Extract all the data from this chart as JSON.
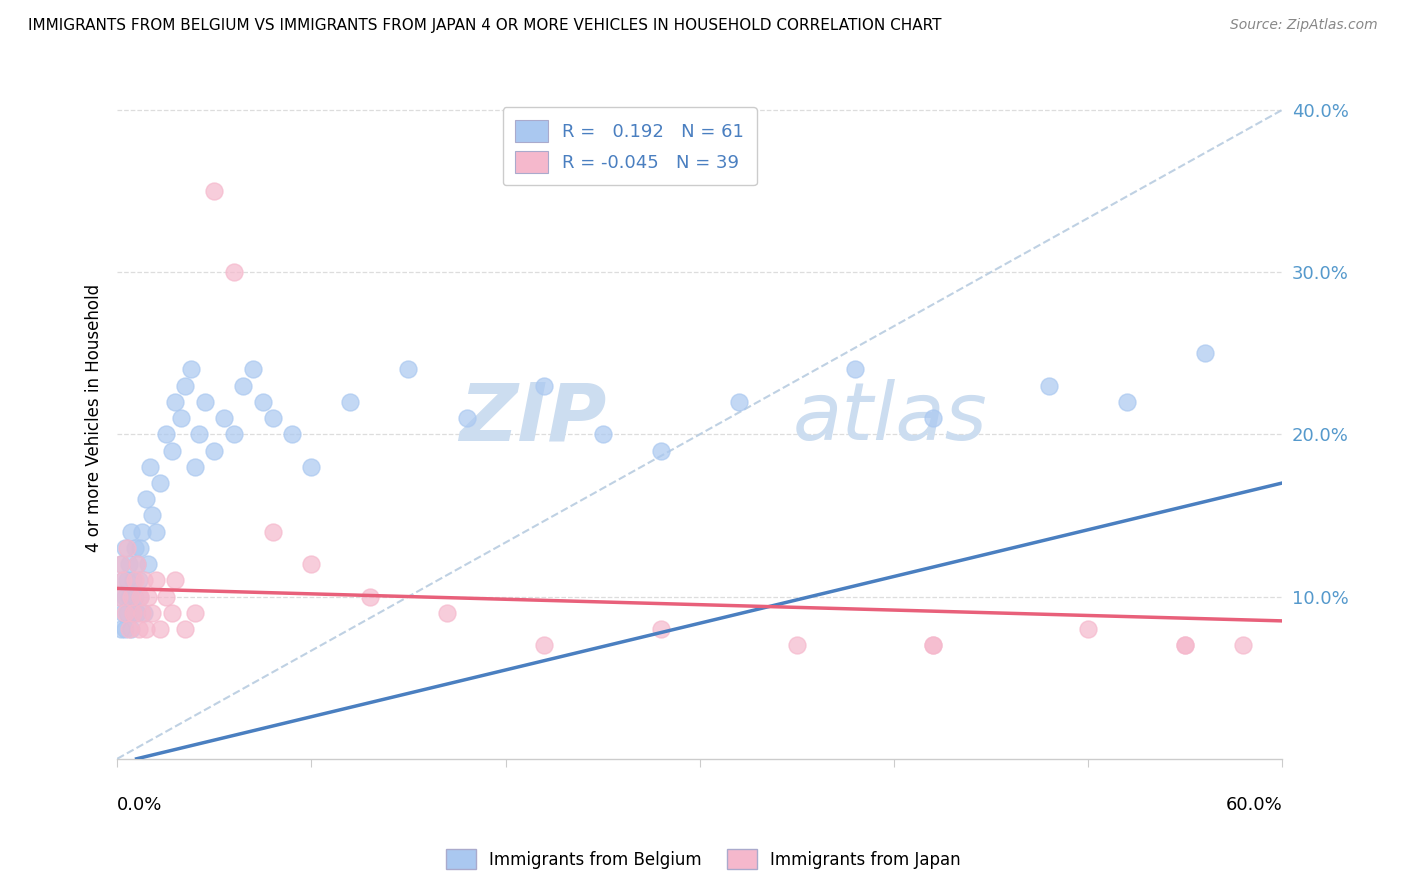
{
  "title": "IMMIGRANTS FROM BELGIUM VS IMMIGRANTS FROM JAPAN 4 OR MORE VEHICLES IN HOUSEHOLD CORRELATION CHART",
  "source": "Source: ZipAtlas.com",
  "ylabel": "4 or more Vehicles in Household",
  "ytick_labels": [
    "",
    "10.0%",
    "20.0%",
    "30.0%",
    "40.0%"
  ],
  "ytick_values": [
    0.0,
    0.1,
    0.2,
    0.3,
    0.4
  ],
  "xmin": 0.0,
  "xmax": 0.6,
  "ymin": 0.0,
  "ymax": 0.42,
  "r_belgium": 0.192,
  "n_belgium": 61,
  "r_japan": -0.045,
  "n_japan": 39,
  "color_belgium": "#aac8f0",
  "color_japan": "#f5b8cc",
  "color_trendline_belgium": "#4a7fc0",
  "color_trendline_japan": "#e8607a",
  "color_dashed_line": "#b8cce0",
  "watermark_color": "#ccddf0",
  "background_color": "#ffffff",
  "belgium_x": [
    0.001,
    0.002,
    0.002,
    0.003,
    0.003,
    0.004,
    0.004,
    0.004,
    0.005,
    0.005,
    0.006,
    0.006,
    0.007,
    0.007,
    0.008,
    0.008,
    0.009,
    0.009,
    0.01,
    0.01,
    0.011,
    0.012,
    0.012,
    0.013,
    0.014,
    0.015,
    0.016,
    0.017,
    0.018,
    0.02,
    0.022,
    0.025,
    0.028,
    0.03,
    0.033,
    0.035,
    0.038,
    0.04,
    0.042,
    0.045,
    0.05,
    0.055,
    0.06,
    0.065,
    0.07,
    0.075,
    0.08,
    0.09,
    0.1,
    0.12,
    0.15,
    0.18,
    0.22,
    0.25,
    0.28,
    0.32,
    0.38,
    0.42,
    0.48,
    0.52,
    0.56
  ],
  "belgium_y": [
    0.1,
    0.08,
    0.12,
    0.09,
    0.11,
    0.08,
    0.1,
    0.13,
    0.09,
    0.11,
    0.1,
    0.12,
    0.08,
    0.14,
    0.09,
    0.11,
    0.1,
    0.13,
    0.09,
    0.12,
    0.11,
    0.1,
    0.13,
    0.14,
    0.09,
    0.16,
    0.12,
    0.18,
    0.15,
    0.14,
    0.17,
    0.2,
    0.19,
    0.22,
    0.21,
    0.23,
    0.24,
    0.18,
    0.2,
    0.22,
    0.19,
    0.21,
    0.2,
    0.23,
    0.24,
    0.22,
    0.21,
    0.2,
    0.18,
    0.22,
    0.24,
    0.21,
    0.23,
    0.2,
    0.19,
    0.22,
    0.24,
    0.21,
    0.23,
    0.22,
    0.25
  ],
  "japan_x": [
    0.001,
    0.002,
    0.003,
    0.004,
    0.005,
    0.006,
    0.007,
    0.008,
    0.009,
    0.01,
    0.011,
    0.012,
    0.013,
    0.014,
    0.015,
    0.016,
    0.018,
    0.02,
    0.022,
    0.025,
    0.028,
    0.03,
    0.035,
    0.04,
    0.05,
    0.06,
    0.08,
    0.1,
    0.13,
    0.17,
    0.22,
    0.28,
    0.35,
    0.42,
    0.5,
    0.55,
    0.42,
    0.55,
    0.58
  ],
  "japan_y": [
    0.1,
    0.12,
    0.11,
    0.09,
    0.13,
    0.08,
    0.1,
    0.09,
    0.11,
    0.12,
    0.08,
    0.1,
    0.09,
    0.11,
    0.08,
    0.1,
    0.09,
    0.11,
    0.08,
    0.1,
    0.09,
    0.11,
    0.08,
    0.09,
    0.35,
    0.3,
    0.14,
    0.12,
    0.1,
    0.09,
    0.07,
    0.08,
    0.07,
    0.07,
    0.08,
    0.07,
    0.07,
    0.07,
    0.07
  ]
}
